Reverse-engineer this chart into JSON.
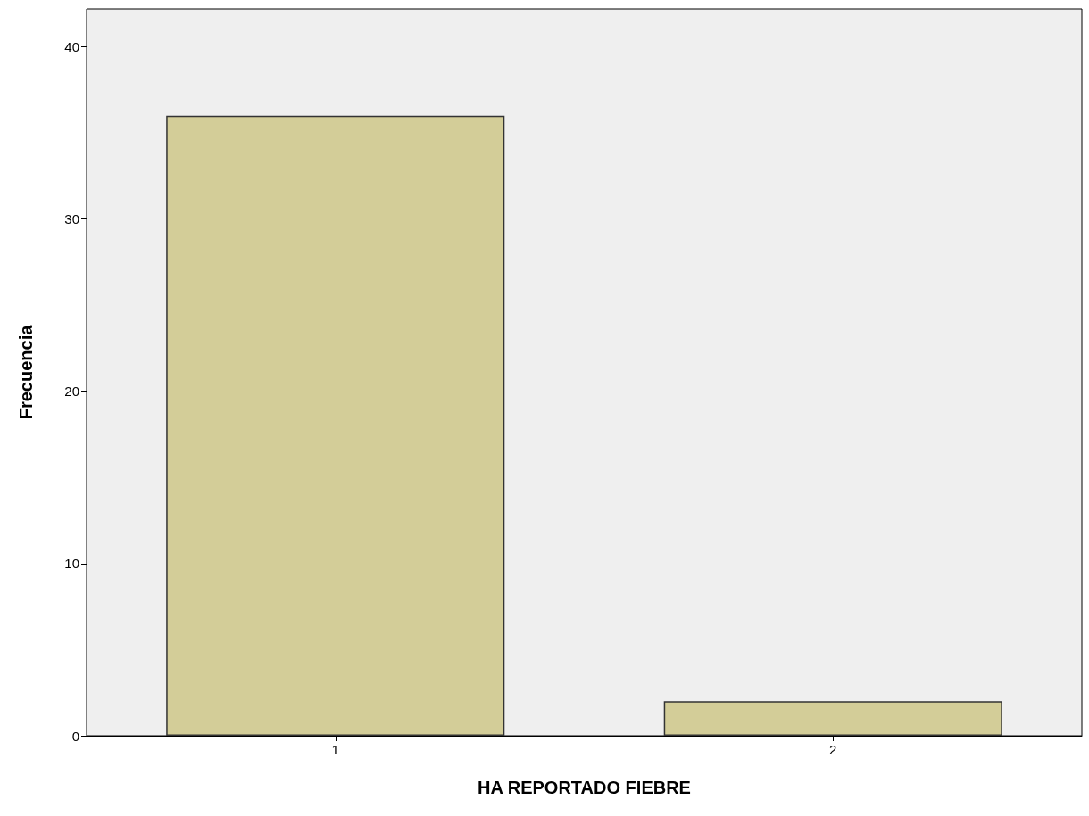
{
  "chart_data": {
    "type": "bar",
    "xlabel": "HA REPORTADO FIEBRE",
    "ylabel": "Frecuencia",
    "categories": [
      "1",
      "2"
    ],
    "series": [
      {
        "color": "#d3cd98",
        "values": [
          36,
          2
        ]
      }
    ],
    "ylim": [
      0,
      42.2
    ],
    "yticks": [
      0,
      10,
      20,
      30,
      40
    ],
    "grid": false
  }
}
